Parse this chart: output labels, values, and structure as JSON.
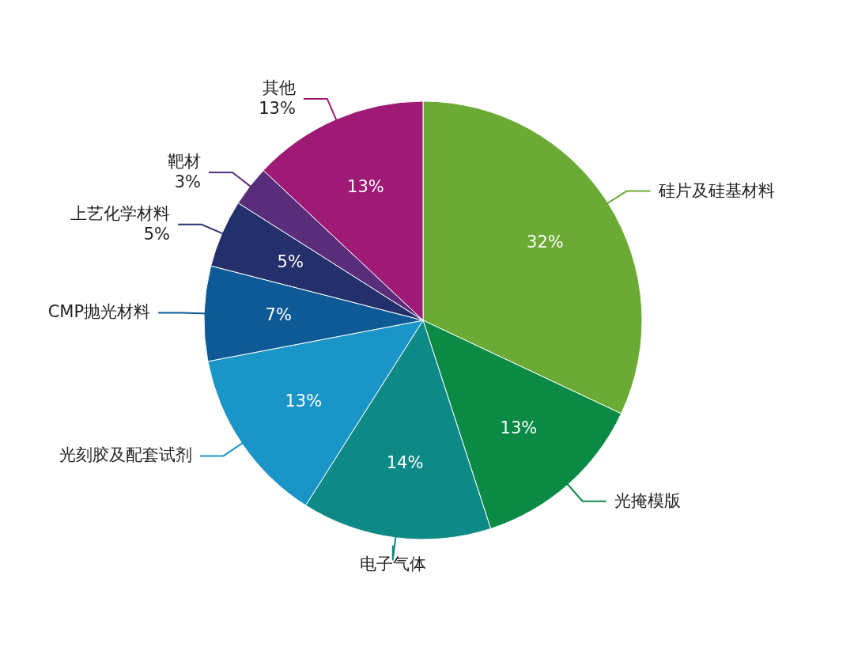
{
  "chart_data": {
    "type": "pie",
    "categories": [
      "硅片及硅基材料",
      "光掩模版",
      "电子气体",
      "光刻胶及配套试剂",
      "CMP抛光材料",
      "上艺化学材料",
      "靶材",
      "其他"
    ],
    "values": [
      32,
      13,
      14,
      13,
      7,
      5,
      3,
      13
    ],
    "colors": [
      "#6aaa35",
      "#0a8a45",
      "#0d8a85",
      "#1a95c8",
      "#0d5a96",
      "#24306b",
      "#5a2d7a",
      "#9e1a74"
    ],
    "value_labels": [
      "32%",
      "13%",
      "14%",
      "13%",
      "7%",
      "5%",
      null,
      "13%"
    ],
    "annotations": [
      {
        "text": "5%",
        "x": "上艺化学材料"
      },
      {
        "text": "3%",
        "x": "靶材"
      },
      {
        "text": "13%",
        "x": "其他"
      }
    ]
  }
}
